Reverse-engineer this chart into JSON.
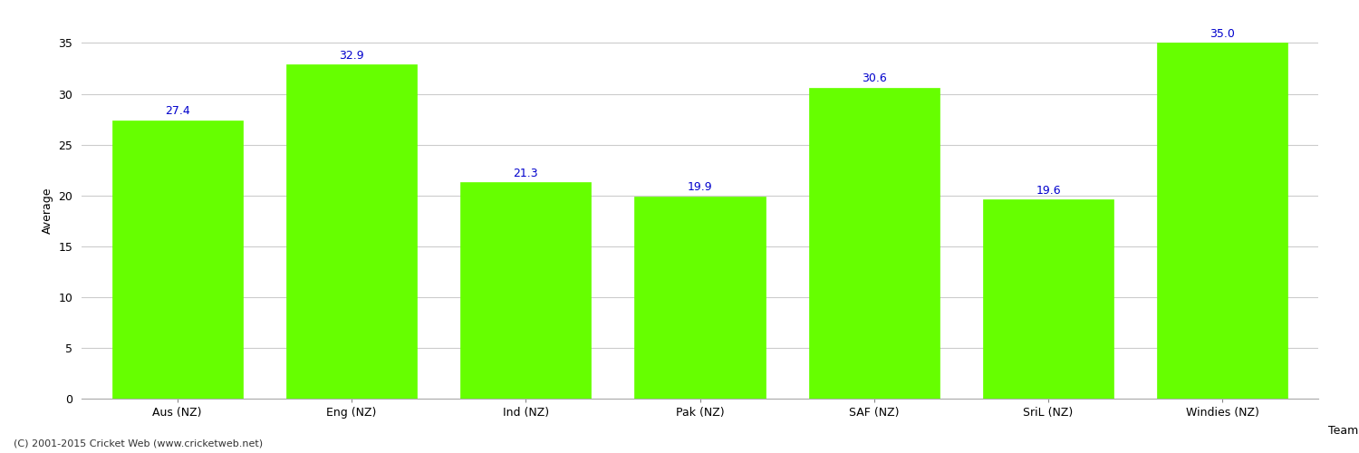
{
  "categories": [
    "Aus (NZ)",
    "Eng (NZ)",
    "Ind (NZ)",
    "Pak (NZ)",
    "SAF (NZ)",
    "SriL (NZ)",
    "Windies (NZ)"
  ],
  "values": [
    27.4,
    32.9,
    21.3,
    19.9,
    30.6,
    19.6,
    35.0
  ],
  "bar_color": "#66ff00",
  "bar_edge_color": "#66ff00",
  "label_color": "#0000cc",
  "xlabel": "Team",
  "ylabel": "Average",
  "ylim": [
    0,
    37
  ],
  "yticks": [
    0,
    5,
    10,
    15,
    20,
    25,
    30,
    35
  ],
  "grid_color": "#cccccc",
  "background_color": "#ffffff",
  "fig_background_color": "#ffffff",
  "label_fontsize": 9,
  "axis_fontsize": 9,
  "footer_text": "(C) 2001-2015 Cricket Web (www.cricketweb.net)",
  "footer_fontsize": 8,
  "footer_color": "#333333"
}
